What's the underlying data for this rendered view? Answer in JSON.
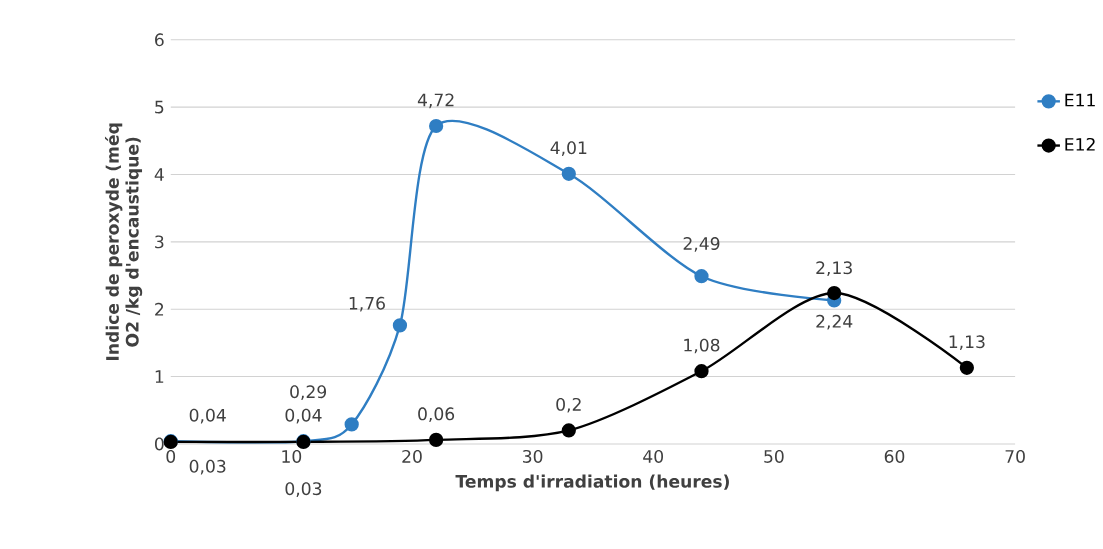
{
  "chart_data": {
    "type": "line",
    "xlabel": "Temps d'irradiation (heures)",
    "ylabel": "Indice de peroxyde (méq O2 /kg d'encaustique)",
    "xlim": [
      0,
      70
    ],
    "xticks": [
      0,
      10,
      20,
      30,
      40,
      50,
      60,
      70
    ],
    "ylim": [
      0,
      6
    ],
    "yticks": [
      0,
      1,
      2,
      3,
      4,
      5,
      6
    ],
    "grid": "y",
    "legend": "right",
    "marker": "circle",
    "line_style": "solid",
    "series": [
      {
        "name": "E11",
        "color": "#2f7ec3",
        "x": [
          0,
          11,
          15,
          19,
          22,
          33,
          44,
          55
        ],
        "values": [
          0.04,
          0.04,
          0.29,
          1.76,
          4.72,
          4.01,
          2.49,
          2.13
        ],
        "value_labels": [
          "0,04",
          "0,04",
          "0,29",
          "1,76",
          "4,72",
          "4,01",
          "2,49",
          "2,13"
        ]
      },
      {
        "name": "E12",
        "color": "#000000",
        "x": [
          0,
          11,
          22,
          33,
          44,
          55,
          66
        ],
        "values": [
          0.03,
          0.03,
          0.06,
          0.2,
          1.08,
          2.24,
          1.13
        ],
        "value_labels": [
          "0,03",
          "0,03",
          "0,06",
          "0,2",
          "1,08",
          "2,24",
          "1,13"
        ]
      }
    ]
  }
}
